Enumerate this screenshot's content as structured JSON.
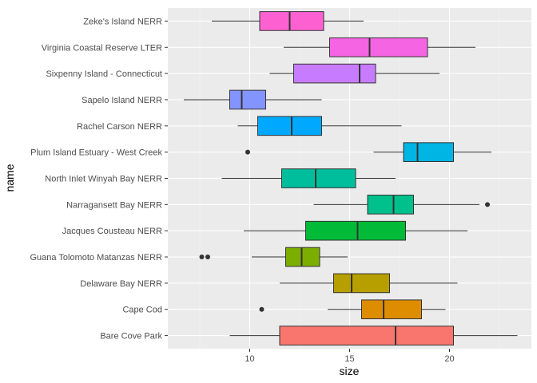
{
  "chart_data": {
    "type": "boxplot",
    "orientation": "horizontal",
    "xlabel": "size",
    "ylabel": "name",
    "xlim": [
      5.9,
      24.1
    ],
    "x_ticks": [
      10,
      15,
      20
    ],
    "x_tick_labels": [
      "10",
      "15",
      "20"
    ],
    "grid": true,
    "legend": "none",
    "background": "#ebebeb",
    "categories": [
      "Zeke's Island NERR",
      "Virginia Coastal Reserve LTER",
      "Sixpenny Island - Connecticut",
      "Sapelo Island NERR",
      "Rachel Carson NERR",
      "Plum Island Estuary - West Creek",
      "North Inlet Winyah Bay NERR",
      "Narragansett Bay NERR",
      "Jacques Cousteau NERR",
      "Guana Tolomoto Matanzas NERR",
      "Delaware Bay NERR",
      "Cape Cod",
      "Bare Cove Park"
    ],
    "boxes": [
      {
        "name": "Zeke's Island NERR",
        "min": 8.1,
        "q1": 10.5,
        "median": 12.0,
        "q3": 13.7,
        "max": 15.7,
        "outliers": [],
        "color": "#fd61d1"
      },
      {
        "name": "Virginia Coastal Reserve LTER",
        "min": 11.7,
        "q1": 14.0,
        "median": 16.0,
        "q3": 18.9,
        "max": 21.3,
        "outliers": [],
        "color": "#f564e3"
      },
      {
        "name": "Sixpenny Island - Connecticut",
        "min": 11.0,
        "q1": 12.2,
        "median": 15.5,
        "q3": 16.3,
        "max": 19.5,
        "outliers": [],
        "color": "#c77cff"
      },
      {
        "name": "Sapelo Island NERR",
        "min": 6.7,
        "q1": 9.0,
        "median": 9.6,
        "q3": 10.8,
        "max": 13.6,
        "outliers": [],
        "color": "#8494ff"
      },
      {
        "name": "Rachel Carson NERR",
        "min": 9.4,
        "q1": 10.4,
        "median": 12.1,
        "q3": 13.6,
        "max": 17.6,
        "outliers": [],
        "color": "#00a9ff"
      },
      {
        "name": "Plum Island Estuary - West Creek",
        "min": 16.2,
        "q1": 17.7,
        "median": 18.4,
        "q3": 20.2,
        "max": 22.1,
        "outliers": [
          9.9
        ],
        "color": "#00b4e4"
      },
      {
        "name": "North Inlet Winyah Bay NERR",
        "min": 8.6,
        "q1": 11.6,
        "median": 13.3,
        "q3": 15.3,
        "max": 17.3,
        "outliers": [],
        "color": "#00be9c"
      },
      {
        "name": "Narragansett Bay NERR",
        "min": 13.2,
        "q1": 15.9,
        "median": 17.2,
        "q3": 18.2,
        "max": 21.5,
        "outliers": [
          21.9
        ],
        "color": "#00c08b"
      },
      {
        "name": "Jacques Cousteau NERR",
        "min": 9.7,
        "q1": 12.8,
        "median": 15.4,
        "q3": 17.8,
        "max": 20.9,
        "outliers": [],
        "color": "#00ba38"
      },
      {
        "name": "Guana Tolomoto Matanzas NERR",
        "min": 10.1,
        "q1": 11.8,
        "median": 12.6,
        "q3": 13.5,
        "max": 14.9,
        "outliers": [
          7.6,
          7.9
        ],
        "color": "#7cae00"
      },
      {
        "name": "Delaware Bay NERR",
        "min": 11.5,
        "q1": 14.2,
        "median": 15.1,
        "q3": 17.0,
        "max": 20.4,
        "outliers": [],
        "color": "#b79f00"
      },
      {
        "name": "Cape Cod",
        "min": 13.9,
        "q1": 15.6,
        "median": 16.7,
        "q3": 18.6,
        "max": 19.8,
        "outliers": [
          10.6
        ],
        "color": "#de8c00"
      },
      {
        "name": "Bare Cove Park",
        "min": 9.0,
        "q1": 11.5,
        "median": 17.3,
        "q3": 20.2,
        "max": 23.4,
        "outliers": [],
        "color": "#f8766d"
      }
    ]
  }
}
